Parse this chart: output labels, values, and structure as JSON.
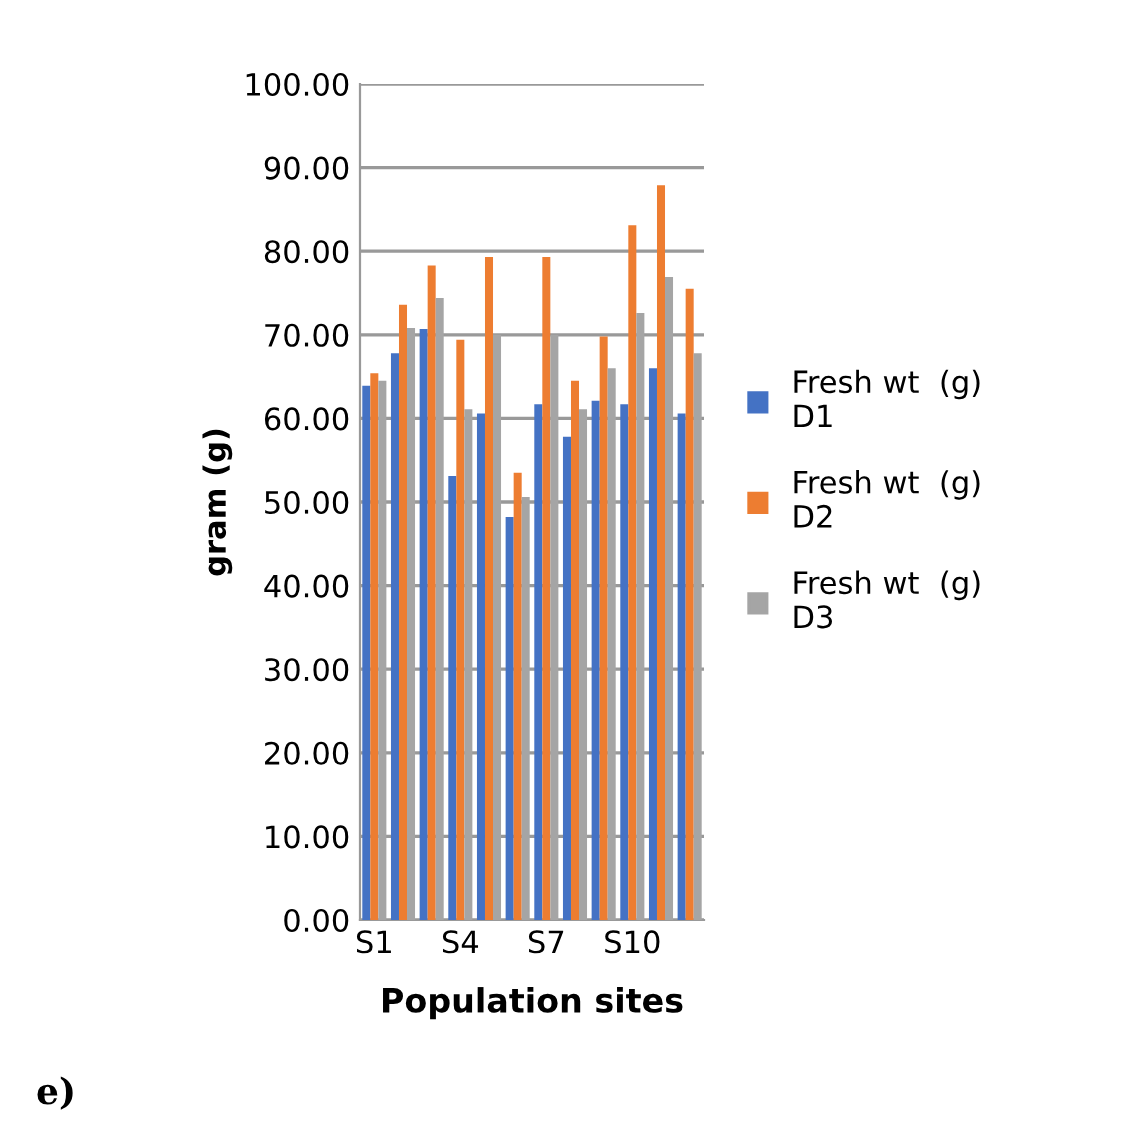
{
  "chart_data": {
    "type": "bar",
    "xlabel": "Population sites",
    "ylabel": "gram (g)",
    "categories": [
      "S1",
      null,
      null,
      "S4",
      null,
      null,
      "S7",
      null,
      null,
      "S10",
      null,
      null
    ],
    "series": [
      {
        "name": "Fresh wt  (g) D1",
        "color": "#4472c4",
        "values": [
          63.9,
          67.8,
          70.7,
          53.1,
          60.6,
          48.2,
          61.7,
          57.8,
          62.1,
          61.7,
          66.0,
          60.6
        ]
      },
      {
        "name": "Fresh wt  (g) D2",
        "color": "#ed7d31",
        "values": [
          65.4,
          73.6,
          78.3,
          69.4,
          79.3,
          53.5,
          79.3,
          64.5,
          69.8,
          83.1,
          87.9,
          75.5
        ]
      },
      {
        "name": "Fresh wt  (g) D3",
        "color": "#a5a5a5",
        "values": [
          64.5,
          70.8,
          74.4,
          61.1,
          70.0,
          50.6,
          70.0,
          61.1,
          66.0,
          72.6,
          76.9,
          67.8
        ]
      }
    ],
    "ylim": [
      0,
      100
    ],
    "yticks": [
      {
        "value": 0,
        "label": "0.00"
      },
      {
        "value": 10,
        "label": "10.00"
      },
      {
        "value": 20,
        "label": "20.00"
      },
      {
        "value": 30,
        "label": "30.00"
      },
      {
        "value": 40,
        "label": "40.00"
      },
      {
        "value": 50,
        "label": "50.00"
      },
      {
        "value": 60,
        "label": "60.00"
      },
      {
        "value": 70,
        "label": "70.00"
      },
      {
        "value": 80,
        "label": "80.00"
      },
      {
        "value": 90,
        "label": "90.00"
      },
      {
        "value": 100,
        "label": "100.00"
      }
    ],
    "grid": "y",
    "legend": "right",
    "annotations": [
      "e)"
    ]
  }
}
